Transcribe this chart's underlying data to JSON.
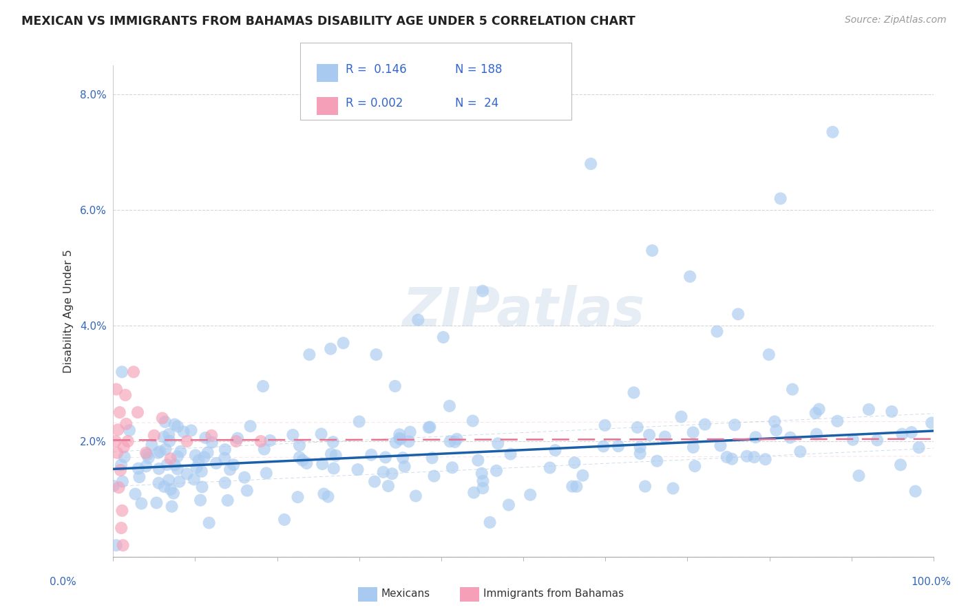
{
  "title": "MEXICAN VS IMMIGRANTS FROM BAHAMAS DISABILITY AGE UNDER 5 CORRELATION CHART",
  "source": "Source: ZipAtlas.com",
  "ylabel": "Disability Age Under 5",
  "watermark": "ZIPatlas",
  "xlim": [
    0,
    100
  ],
  "ylim": [
    0,
    8.5
  ],
  "color_mexican": "#a8caf0",
  "color_bahamas": "#f5a0b8",
  "color_line_mexican": "#1a5fa8",
  "color_line_bahamas": "#e87090",
  "color_legend_text": "#3366cc",
  "r1": 0.146,
  "n1": 188,
  "r2": 0.002,
  "n2": 24,
  "trend_mex_start": 1.52,
  "trend_mex_end": 2.18,
  "trend_bah_start": 2.02,
  "trend_bah_end": 2.04
}
